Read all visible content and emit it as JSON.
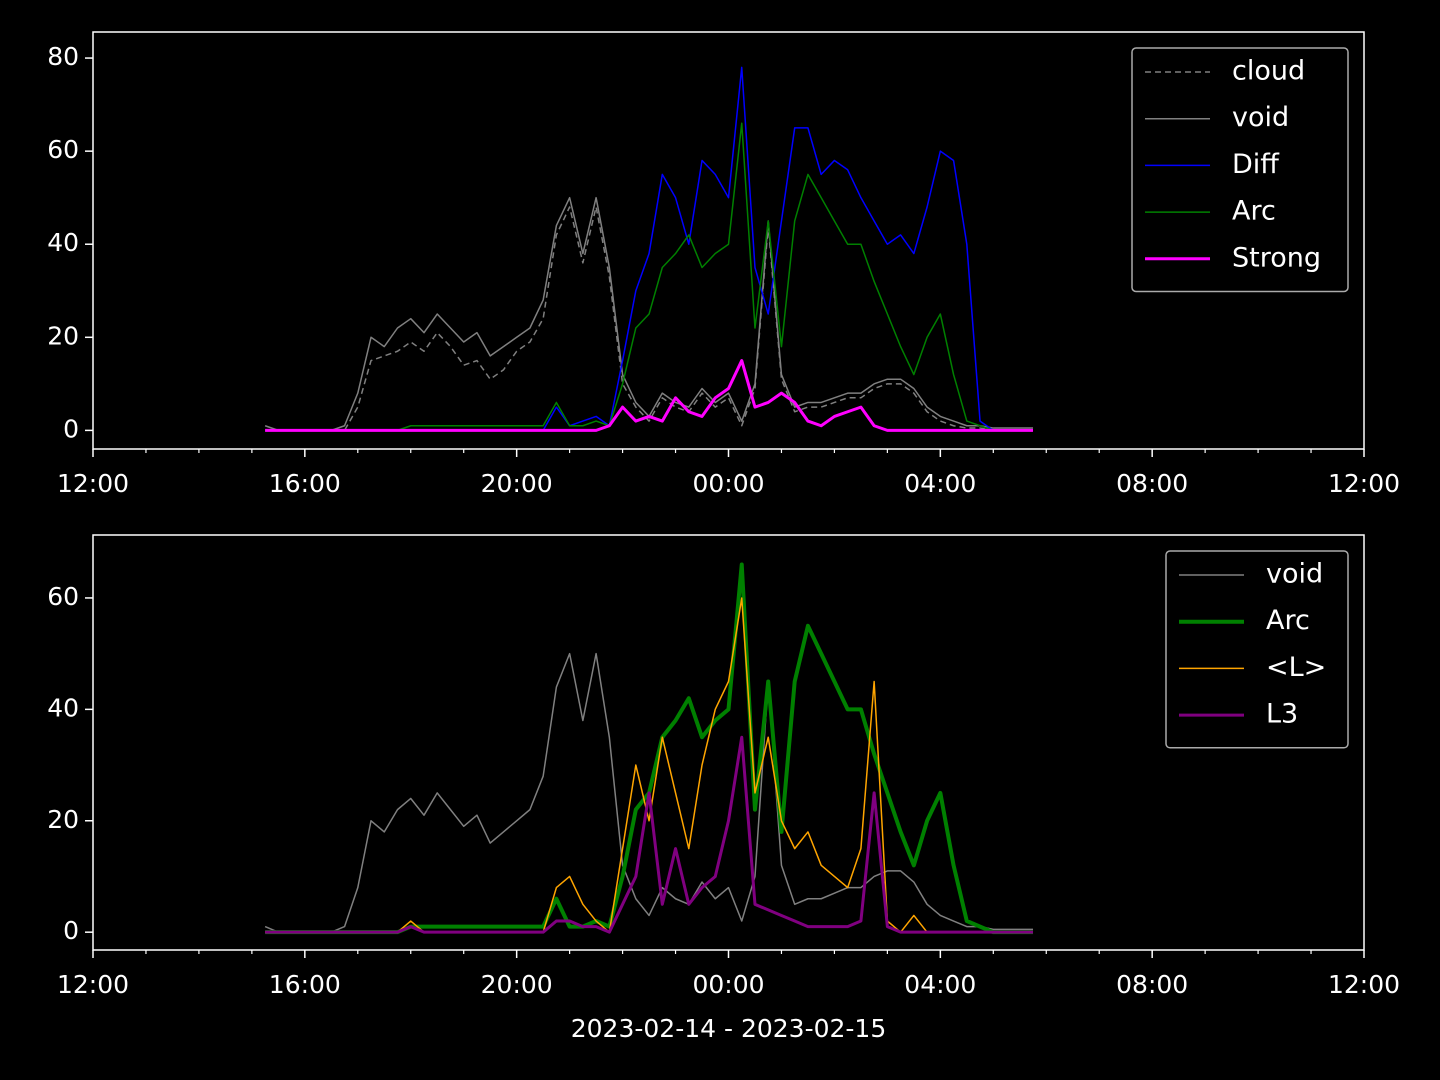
{
  "chart_data": [
    {
      "type": "line",
      "x": [
        15.25,
        15.5,
        15.75,
        16,
        16.25,
        16.5,
        16.75,
        17,
        17.25,
        17.5,
        17.75,
        18,
        18.25,
        18.5,
        18.75,
        19,
        19.25,
        19.5,
        19.75,
        20,
        20.25,
        20.5,
        20.75,
        21,
        21.25,
        21.5,
        21.75,
        22,
        22.25,
        22.5,
        22.75,
        23,
        23.25,
        23.5,
        23.75,
        24,
        24.25,
        24.5,
        24.75,
        25,
        25.25,
        25.5,
        25.75,
        26,
        26.25,
        26.5,
        26.75,
        27,
        27.25,
        27.5,
        27.75,
        28,
        28.25,
        28.5,
        28.75,
        29,
        29.25,
        29.5,
        29.75
      ],
      "xlim": [
        12,
        36
      ],
      "xticks": [
        {
          "value": 12,
          "label": "12:00"
        },
        {
          "value": 16,
          "label": "16:00"
        },
        {
          "value": 20,
          "label": "20:00"
        },
        {
          "value": 24,
          "label": "00:00"
        },
        {
          "value": 28,
          "label": "04:00"
        },
        {
          "value": 32,
          "label": "08:00"
        },
        {
          "value": 36,
          "label": "12:00"
        }
      ],
      "xminorticks": [
        13,
        14,
        15,
        17,
        18,
        19,
        21,
        22,
        23,
        25,
        26,
        27,
        29,
        30,
        31,
        33,
        34,
        35
      ],
      "ylim": [
        -4,
        85.6
      ],
      "yticks": [
        0,
        20,
        40,
        60,
        80
      ],
      "legend": "upper right",
      "series": [
        {
          "name": "cloud",
          "color": "#808080",
          "linewidth": 1.5,
          "linestyle": "dashed",
          "values": [
            0,
            0,
            0,
            0,
            0,
            0,
            0,
            5,
            15,
            16,
            17,
            19,
            17,
            21,
            18,
            14,
            15,
            11,
            13,
            17,
            19,
            24,
            42,
            48,
            36,
            48,
            33,
            10,
            5,
            2,
            7,
            5,
            4,
            8,
            5,
            7,
            1,
            9,
            44,
            11,
            4,
            5,
            5,
            6,
            7,
            7,
            9,
            10,
            10,
            8,
            4,
            2,
            1,
            0.5,
            0.5,
            0,
            0,
            0,
            0
          ]
        },
        {
          "name": "void",
          "color": "#808080",
          "linewidth": 1.5,
          "linestyle": "solid",
          "values": [
            1,
            0,
            0,
            0,
            0,
            0,
            1,
            8,
            20,
            18,
            22,
            24,
            21,
            25,
            22,
            19,
            21,
            16,
            18,
            20,
            22,
            28,
            44,
            50,
            38,
            50,
            35,
            12,
            6,
            3,
            8,
            6,
            5,
            9,
            6,
            8,
            2,
            10,
            45,
            12,
            5,
            6,
            6,
            7,
            8,
            8,
            10,
            11,
            11,
            9,
            5,
            3,
            2,
            1,
            1,
            0.5,
            0.5,
            0.5,
            0.5
          ]
        },
        {
          "name": "Diff",
          "color": "#0000ff",
          "linewidth": 1.5,
          "linestyle": "solid",
          "values": [
            0,
            0,
            0,
            0,
            0,
            0,
            0,
            0,
            0,
            0,
            0,
            0,
            0,
            0,
            0,
            0,
            0,
            0,
            0,
            0,
            0,
            0,
            5,
            1,
            2,
            3,
            1,
            15,
            30,
            38,
            55,
            50,
            40,
            58,
            55,
            50,
            78,
            35,
            25,
            45,
            65,
            65,
            55,
            58,
            56,
            50,
            45,
            40,
            42,
            38,
            48,
            60,
            58,
            40,
            2,
            0,
            0,
            0,
            0
          ]
        },
        {
          "name": "Arc",
          "color": "#008000",
          "linewidth": 1.5,
          "linestyle": "solid",
          "values": [
            0,
            0,
            0,
            0,
            0,
            0,
            0,
            0,
            0,
            0,
            0,
            1,
            1,
            1,
            1,
            1,
            1,
            1,
            1,
            1,
            1,
            1,
            6,
            1,
            1,
            2,
            1,
            10,
            22,
            25,
            35,
            38,
            42,
            35,
            38,
            40,
            66,
            22,
            45,
            18,
            45,
            55,
            50,
            45,
            40,
            40,
            32,
            25,
            18,
            12,
            20,
            25,
            12,
            2,
            1,
            0,
            0,
            0,
            0
          ]
        },
        {
          "name": "Strong",
          "color": "#ff00ff",
          "linewidth": 3,
          "linestyle": "solid",
          "values": [
            0,
            0,
            0,
            0,
            0,
            0,
            0,
            0,
            0,
            0,
            0,
            0,
            0,
            0,
            0,
            0,
            0,
            0,
            0,
            0,
            0,
            0,
            0,
            0,
            0,
            0,
            1,
            5,
            2,
            3,
            2,
            7,
            4,
            3,
            7,
            9,
            15,
            5,
            6,
            8,
            6,
            2,
            1,
            3,
            4,
            5,
            1,
            0,
            0,
            0,
            0,
            0,
            0,
            0,
            0,
            0,
            0,
            0,
            0
          ]
        }
      ]
    },
    {
      "type": "line",
      "x": [
        15.25,
        15.5,
        15.75,
        16,
        16.25,
        16.5,
        16.75,
        17,
        17.25,
        17.5,
        17.75,
        18,
        18.25,
        18.5,
        18.75,
        19,
        19.25,
        19.5,
        19.75,
        20,
        20.25,
        20.5,
        20.75,
        21,
        21.25,
        21.5,
        21.75,
        22,
        22.25,
        22.5,
        22.75,
        23,
        23.25,
        23.5,
        23.75,
        24,
        24.25,
        24.5,
        24.75,
        25,
        25.25,
        25.5,
        25.75,
        26,
        26.25,
        26.5,
        26.75,
        27,
        27.25,
        27.5,
        27.75,
        28,
        28.25,
        28.5,
        28.75,
        29,
        29.25,
        29.5,
        29.75
      ],
      "xlim": [
        12,
        36
      ],
      "xticks": [
        {
          "value": 12,
          "label": "12:00"
        },
        {
          "value": 16,
          "label": "16:00"
        },
        {
          "value": 20,
          "label": "20:00"
        },
        {
          "value": 24,
          "label": "00:00"
        },
        {
          "value": 28,
          "label": "04:00"
        },
        {
          "value": 32,
          "label": "08:00"
        },
        {
          "value": 36,
          "label": "12:00"
        }
      ],
      "xminorticks": [
        13,
        14,
        15,
        17,
        18,
        19,
        21,
        22,
        23,
        25,
        26,
        27,
        29,
        30,
        31,
        33,
        34,
        35
      ],
      "ylim": [
        -3.2,
        71.3
      ],
      "yticks": [
        0,
        20,
        40,
        60
      ],
      "xlabel": "2023-02-14 - 2023-02-15",
      "legend": "upper right",
      "series": [
        {
          "name": "void",
          "color": "#808080",
          "linewidth": 1.5,
          "linestyle": "solid",
          "values": [
            1,
            0,
            0,
            0,
            0,
            0,
            1,
            8,
            20,
            18,
            22,
            24,
            21,
            25,
            22,
            19,
            21,
            16,
            18,
            20,
            22,
            28,
            44,
            50,
            38,
            50,
            35,
            12,
            6,
            3,
            8,
            6,
            5,
            9,
            6,
            8,
            2,
            10,
            45,
            12,
            5,
            6,
            6,
            7,
            8,
            8,
            10,
            11,
            11,
            9,
            5,
            3,
            2,
            1,
            1,
            0.5,
            0.5,
            0.5,
            0.5
          ]
        },
        {
          "name": "Arc",
          "color": "#008000",
          "linewidth": 4,
          "linestyle": "solid",
          "values": [
            0,
            0,
            0,
            0,
            0,
            0,
            0,
            0,
            0,
            0,
            0,
            1,
            1,
            1,
            1,
            1,
            1,
            1,
            1,
            1,
            1,
            1,
            6,
            1,
            1,
            2,
            1,
            10,
            22,
            25,
            35,
            38,
            42,
            35,
            38,
            40,
            66,
            22,
            45,
            18,
            45,
            55,
            50,
            45,
            40,
            40,
            32,
            25,
            18,
            12,
            20,
            25,
            12,
            2,
            1,
            0,
            0,
            0,
            0
          ]
        },
        {
          "name": "<L>",
          "color": "#ffa500",
          "linewidth": 1.5,
          "linestyle": "solid",
          "values": [
            0,
            0,
            0,
            0,
            0,
            0,
            0,
            0,
            0,
            0,
            0,
            2,
            0,
            0,
            0,
            0,
            0,
            0,
            0,
            0,
            0,
            0,
            8,
            10,
            5,
            2,
            0,
            15,
            30,
            20,
            35,
            25,
            15,
            30,
            40,
            45,
            60,
            25,
            35,
            20,
            15,
            18,
            12,
            10,
            8,
            15,
            45,
            2,
            0,
            3,
            0,
            0,
            0,
            0,
            0,
            0,
            0,
            0,
            0
          ]
        },
        {
          "name": "L3",
          "color": "#800080",
          "linewidth": 3,
          "linestyle": "solid",
          "values": [
            0,
            0,
            0,
            0,
            0,
            0,
            0,
            0,
            0,
            0,
            0,
            1,
            0,
            0,
            0,
            0,
            0,
            0,
            0,
            0,
            0,
            0,
            2,
            2,
            1,
            1,
            0,
            5,
            10,
            25,
            5,
            15,
            5,
            8,
            10,
            20,
            35,
            5,
            4,
            3,
            2,
            1,
            1,
            1,
            1,
            2,
            25,
            1,
            0,
            0,
            0,
            0,
            0,
            0,
            0,
            0,
            0,
            0,
            0
          ]
        }
      ]
    }
  ]
}
